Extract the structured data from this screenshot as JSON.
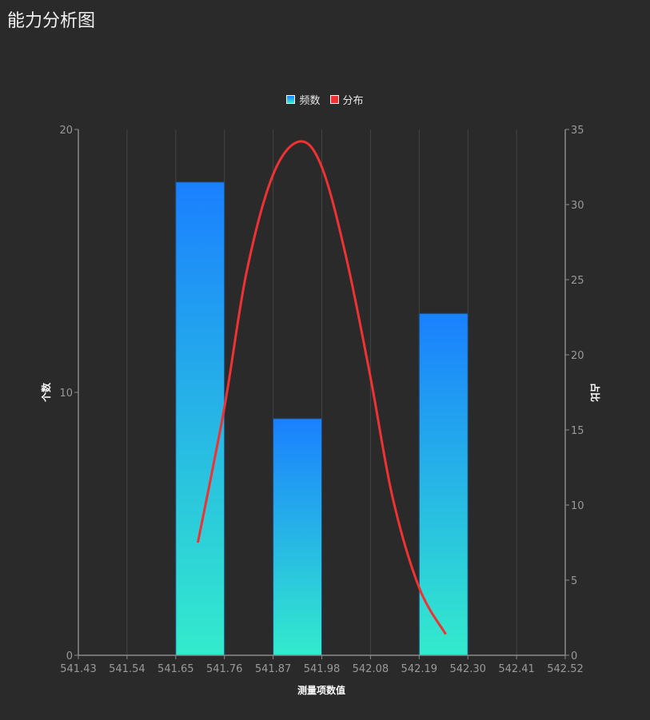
{
  "title": "能力分析图",
  "legend": [
    {
      "label": "频数",
      "color": "#1f8cf5"
    },
    {
      "label": "分布",
      "color": "#f03232"
    }
  ],
  "colors": {
    "bar_top": "#1a80ff",
    "bar_bottom": "#33ebcc",
    "line": "#f03232",
    "grid": "#444444",
    "axis": "#8a8a8a",
    "background": "#2a2a2a"
  },
  "chart_data": {
    "type": "bar",
    "title": "能力分析图",
    "xlabel": "测量项数值",
    "ylabel": "个数",
    "y2label": "占比",
    "x_ticks": [
      "541.43",
      "541.54",
      "541.65",
      "541.76",
      "541.87",
      "541.98",
      "542.08",
      "542.19",
      "542.30",
      "542.41",
      "542.52"
    ],
    "ylim": [
      0,
      20
    ],
    "y_ticks": [
      0,
      10,
      20
    ],
    "y2lim": [
      0,
      35
    ],
    "y2_ticks": [
      0,
      5,
      10,
      15,
      20,
      25,
      30,
      35
    ],
    "grid": true,
    "legend_position": "top",
    "series": [
      {
        "name": "频数",
        "type": "bar",
        "bins": [
          {
            "from": 541.65,
            "to": 541.76,
            "value": 18
          },
          {
            "from": 541.87,
            "to": 541.98,
            "value": 9
          },
          {
            "from": 542.19,
            "to": 542.3,
            "value": 13
          }
        ]
      },
      {
        "name": "分布",
        "type": "line",
        "axis": "right",
        "points": [
          [
            541.7,
            7.5
          ],
          [
            541.76,
            16.5
          ],
          [
            541.81,
            25.5
          ],
          [
            541.87,
            32.0
          ],
          [
            541.93,
            34.2
          ],
          [
            541.98,
            32.5
          ],
          [
            542.03,
            26.5
          ],
          [
            542.08,
            18.5
          ],
          [
            542.13,
            10.5
          ],
          [
            542.19,
            4.5
          ],
          [
            542.25,
            1.4
          ]
        ]
      }
    ]
  }
}
